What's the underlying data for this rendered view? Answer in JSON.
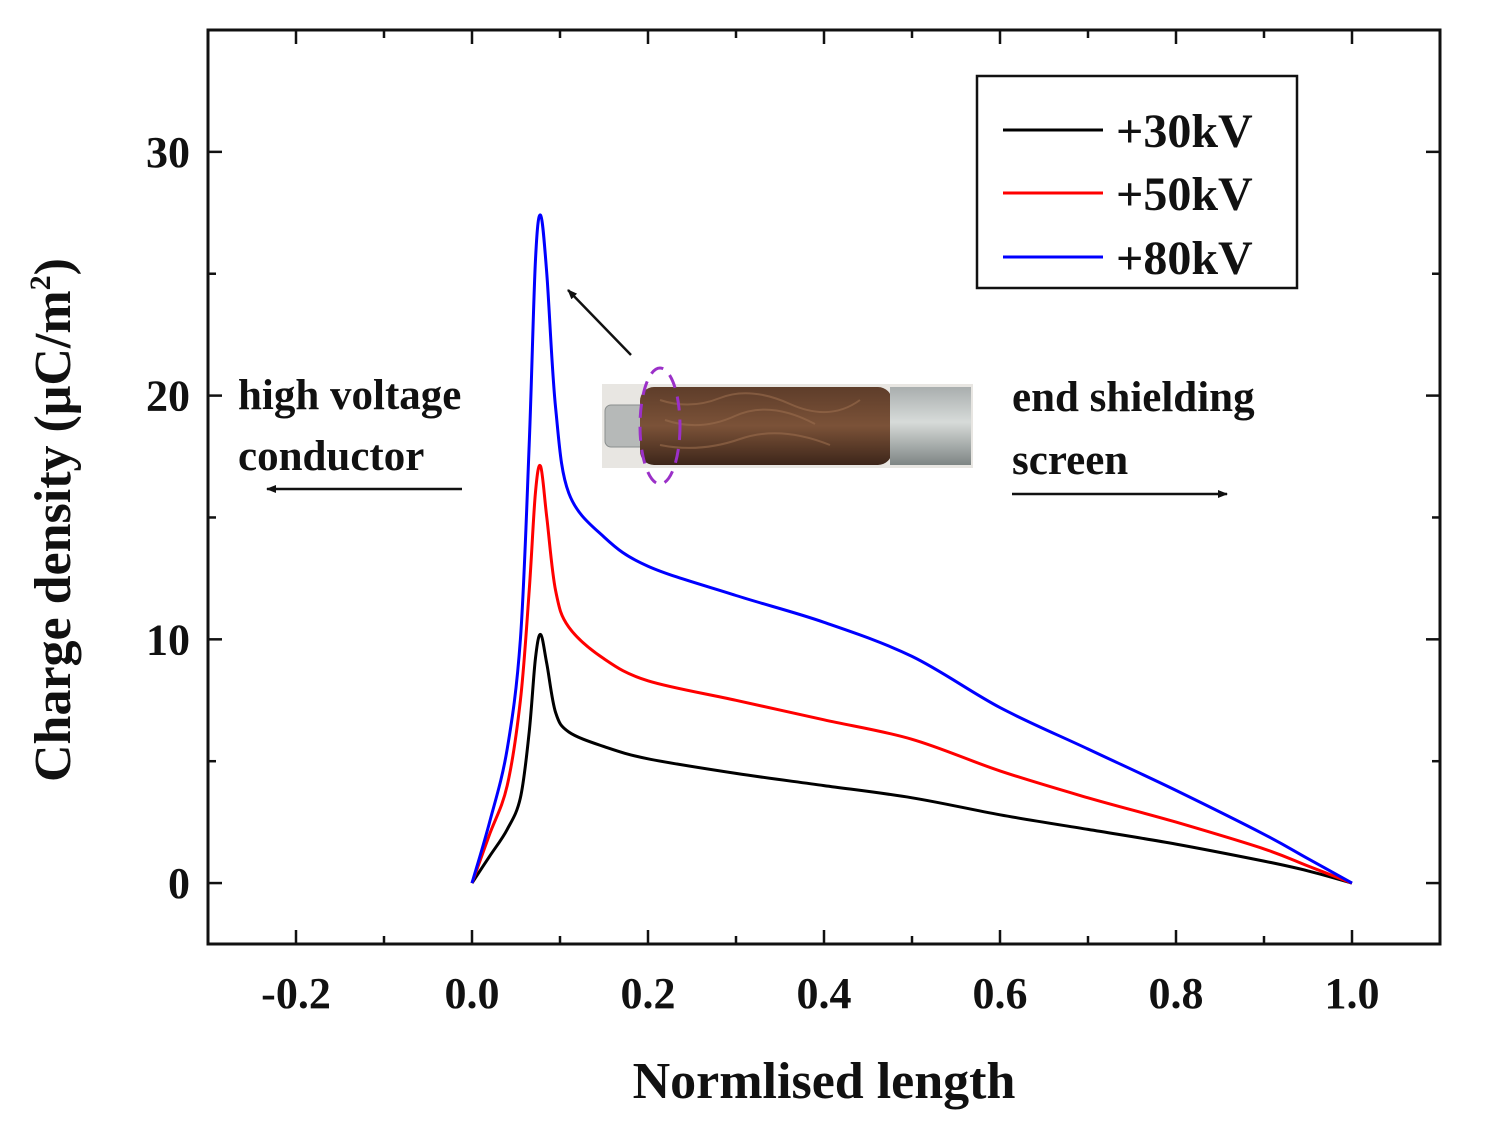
{
  "chart_data": {
    "type": "line",
    "title": "",
    "xlabel": "Normlised length",
    "ylabel": "Charge density (μC/m2)",
    "ylabel_main": "Charge density (μC/m",
    "ylabel_sup": "2",
    "ylabel_close": ")",
    "xlim": [
      -0.3,
      1.1
    ],
    "ylim": [
      -2.5,
      35
    ],
    "xticks": [
      -0.2,
      0.0,
      0.2,
      0.4,
      0.6,
      0.8,
      1.0
    ],
    "xtick_labels": [
      "-0.2",
      "0.0",
      "0.2",
      "0.4",
      "0.6",
      "0.8",
      "1.0"
    ],
    "yticks": [
      0,
      10,
      20,
      30
    ],
    "ytick_labels": [
      "0",
      "10",
      "20",
      "30"
    ],
    "legend_position": "top-right",
    "series": [
      {
        "name": "+30kV",
        "color": "#000000",
        "x": [
          0.0,
          0.02,
          0.04,
          0.055,
          0.065,
          0.072,
          0.078,
          0.085,
          0.095,
          0.11,
          0.15,
          0.2,
          0.3,
          0.4,
          0.5,
          0.6,
          0.7,
          0.8,
          0.9,
          0.95,
          1.0
        ],
        "y": [
          0.0,
          1.1,
          2.2,
          3.5,
          6.2,
          9.2,
          10.2,
          9.0,
          7.0,
          6.2,
          5.6,
          5.1,
          4.5,
          4.0,
          3.5,
          2.8,
          2.2,
          1.6,
          0.9,
          0.5,
          0.0
        ]
      },
      {
        "name": "+50kV",
        "color": "#ff0000",
        "x": [
          0.0,
          0.02,
          0.04,
          0.055,
          0.065,
          0.072,
          0.078,
          0.085,
          0.095,
          0.11,
          0.15,
          0.2,
          0.3,
          0.4,
          0.5,
          0.6,
          0.7,
          0.8,
          0.9,
          0.95,
          1.0
        ],
        "y": [
          0.0,
          2.0,
          4.0,
          7.5,
          12.0,
          16.0,
          17.1,
          15.0,
          12.0,
          10.5,
          9.2,
          8.3,
          7.5,
          6.7,
          5.9,
          4.6,
          3.5,
          2.5,
          1.4,
          0.7,
          0.0
        ]
      },
      {
        "name": "+80kV",
        "color": "#0000ff",
        "x": [
          0.0,
          0.02,
          0.04,
          0.055,
          0.065,
          0.072,
          0.078,
          0.085,
          0.095,
          0.11,
          0.15,
          0.2,
          0.3,
          0.4,
          0.5,
          0.6,
          0.7,
          0.8,
          0.9,
          0.95,
          1.0
        ],
        "y": [
          0.0,
          2.5,
          5.5,
          10.0,
          18.0,
          25.5,
          27.4,
          25.0,
          19.5,
          16.0,
          14.2,
          13.0,
          11.8,
          10.7,
          9.3,
          7.2,
          5.5,
          3.8,
          2.0,
          1.0,
          0.0
        ]
      }
    ],
    "annotations": {
      "left_label_line1": "high voltage",
      "left_label_line2": "conductor",
      "right_label_line1": "end shielding",
      "right_label_line2": "screen"
    }
  }
}
